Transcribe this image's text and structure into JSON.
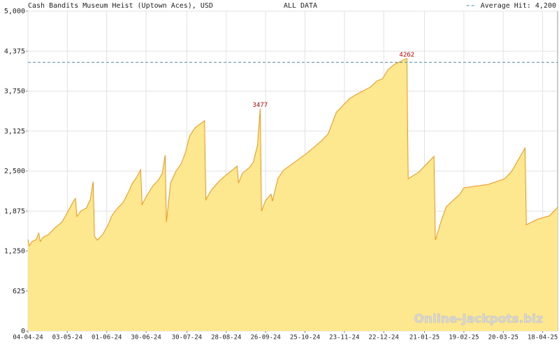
{
  "chart_data": {
    "type": "area",
    "title": "Cash Bandits Museum Heist (Uptown Aces), USD",
    "subtitle": "ALL DATA",
    "watermark": "Online-Jackpots.biz",
    "legend_position": "top-right",
    "grid": true,
    "xlim": [
      "2024-04-04",
      "2025-04-29"
    ],
    "xticks": [
      {
        "value": "2024-04-04",
        "label": "04-04-24"
      },
      {
        "value": "2024-05-03",
        "label": "03-05-24"
      },
      {
        "value": "2024-06-01",
        "label": "01-06-24"
      },
      {
        "value": "2024-06-30",
        "label": "30-06-24"
      },
      {
        "value": "2024-07-30",
        "label": "30-07-24"
      },
      {
        "value": "2024-08-28",
        "label": "28-08-24"
      },
      {
        "value": "2024-09-26",
        "label": "26-09-24"
      },
      {
        "value": "2024-10-25",
        "label": "25-10-24"
      },
      {
        "value": "2024-11-23",
        "label": "23-11-24"
      },
      {
        "value": "2024-12-22",
        "label": "22-12-24"
      },
      {
        "value": "2025-01-21",
        "label": "21-01-25"
      },
      {
        "value": "2025-02-19",
        "label": "19-02-25"
      },
      {
        "value": "2025-03-20",
        "label": "20-03-25"
      },
      {
        "value": "2025-04-18",
        "label": "18-04-25"
      }
    ],
    "ylim": [
      0,
      5000
    ],
    "yticks": [
      0,
      625,
      {
        "value": 1250,
        "label": "1,250"
      },
      {
        "value": 1875,
        "label": "1,875"
      },
      {
        "value": 2500,
        "label": "2,500"
      },
      {
        "value": 3125,
        "label": "3,125"
      },
      {
        "value": 3750,
        "label": "3,750"
      },
      {
        "value": 4375,
        "label": "4,375"
      },
      {
        "value": 5000,
        "label": "5,000"
      }
    ],
    "x": [
      "2024-04-04",
      "2024-04-05",
      "2024-04-07",
      "2024-04-10",
      "2024-04-12",
      "2024-04-13",
      "2024-04-15",
      "2024-04-19",
      "2024-04-24",
      "2024-04-29",
      "2024-05-02",
      "2024-05-07",
      "2024-05-09",
      "2024-05-10",
      "2024-05-13",
      "2024-05-17",
      "2024-05-20",
      "2024-05-22",
      "2024-05-23",
      "2024-05-25",
      "2024-05-29",
      "2024-06-02",
      "2024-06-05",
      "2024-06-09",
      "2024-06-13",
      "2024-06-17",
      "2024-06-20",
      "2024-06-23",
      "2024-06-26",
      "2024-06-27",
      "2024-06-30",
      "2024-07-05",
      "2024-07-09",
      "2024-07-12",
      "2024-07-14",
      "2024-07-15",
      "2024-07-18",
      "2024-07-22",
      "2024-07-26",
      "2024-07-29",
      "2024-08-01",
      "2024-08-05",
      "2024-08-12",
      "2024-08-13",
      "2024-08-17",
      "2024-08-23",
      "2024-08-27",
      "2024-08-31",
      "2024-09-05",
      "2024-09-06",
      "2024-09-09",
      "2024-09-14",
      "2024-09-17",
      "2024-09-20",
      "2024-09-22",
      "2024-09-23",
      "2024-09-26",
      "2024-09-30",
      "2024-10-01",
      "2024-10-05",
      "2024-10-09",
      "2024-10-19",
      "2024-10-26",
      "2024-11-06",
      "2024-11-11",
      "2024-11-17",
      "2024-11-21",
      "2024-11-27",
      "2024-12-02",
      "2024-12-12",
      "2024-12-17",
      "2024-12-21",
      "2024-12-25",
      "2024-12-30",
      "2025-01-08",
      "2025-01-09",
      "2025-01-17",
      "2025-01-22",
      "2025-01-28",
      "2025-01-29",
      "2025-02-02",
      "2025-02-06",
      "2025-02-16",
      "2025-02-19",
      "2025-03-09",
      "2025-03-21",
      "2025-03-26",
      "2025-04-05",
      "2025-04-06",
      "2025-04-14",
      "2025-04-23",
      "2025-04-29"
    ],
    "series": [
      {
        "name": "Jackpot",
        "color": "#f29419",
        "fill": "#fde88f",
        "values": [
          1430,
          1332,
          1398,
          1430,
          1529,
          1398,
          1463,
          1507,
          1616,
          1703,
          1812,
          2009,
          2074,
          1790,
          1878,
          1921,
          2063,
          2336,
          1485,
          1420,
          1507,
          1660,
          1812,
          1921,
          2009,
          2173,
          2315,
          2402,
          2522,
          1976,
          2096,
          2271,
          2358,
          2468,
          2752,
          1703,
          2315,
          2500,
          2620,
          2795,
          3046,
          3177,
          3287,
          2052,
          2205,
          2347,
          2424,
          2490,
          2577,
          2315,
          2468,
          2555,
          2642,
          2904,
          3477,
          1878,
          2042,
          2140,
          2031,
          2380,
          2511,
          2664,
          2773,
          2970,
          3079,
          3418,
          3505,
          3636,
          3702,
          3811,
          3910,
          3942,
          4084,
          4171,
          4262,
          2380,
          2489,
          2599,
          2730,
          1420,
          1703,
          1943,
          2140,
          2238,
          2293,
          2380,
          2490,
          2861,
          1660,
          1747,
          1801,
          1933
        ]
      }
    ],
    "annotations": [
      {
        "x": "2024-09-22",
        "value": 3477,
        "color": "#cc0000"
      },
      {
        "x": "2025-01-08",
        "value": 4262,
        "color": "#cc0000"
      }
    ],
    "average": {
      "value": 4200,
      "label": "Average Hit: 4,200",
      "color": "#4a8ca8"
    }
  }
}
